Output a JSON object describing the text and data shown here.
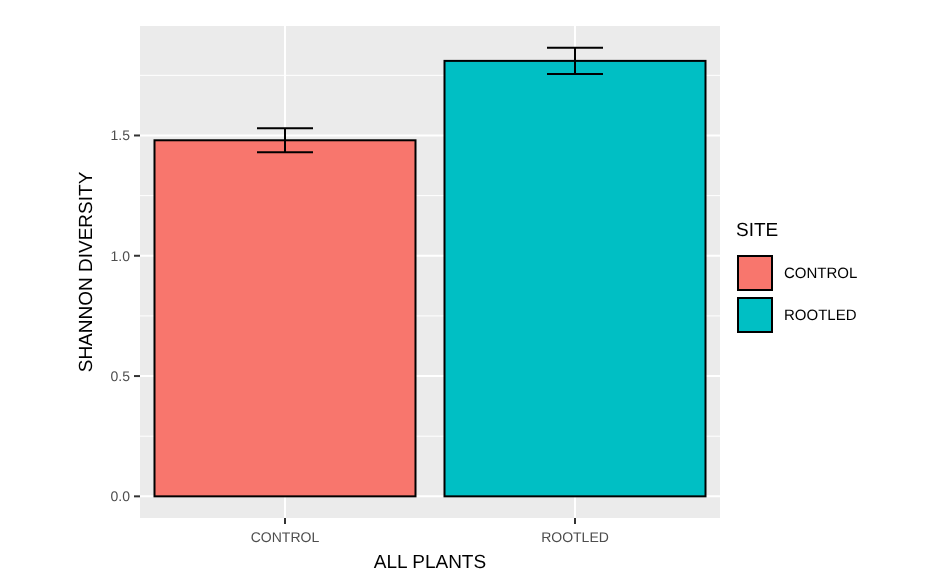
{
  "chart_data": {
    "type": "bar",
    "categories": [
      "CONTROL",
      "ROOTLED"
    ],
    "series": [
      {
        "name": "CONTROL",
        "color": "#f8766d",
        "values": [
          1.48,
          null
        ],
        "errors": [
          0.05,
          null
        ]
      },
      {
        "name": "ROOTLED",
        "color": "#00bfc4",
        "values": [
          null,
          1.81
        ],
        "errors": [
          null,
          0.055
        ]
      }
    ],
    "ylim": [
      -0.09,
      1.955
    ],
    "yticks": [
      {
        "value": 0,
        "label": "0.0"
      },
      {
        "value": 0.5,
        "label": "0.5"
      },
      {
        "value": 1,
        "label": "1.0"
      },
      {
        "value": 1.5,
        "label": "1.5"
      }
    ],
    "xlabel": "ALL PLANTS",
    "ylabel": "SHANNON DIVERSITY",
    "legend_title": "SITE",
    "legend": "right",
    "grid": true
  }
}
